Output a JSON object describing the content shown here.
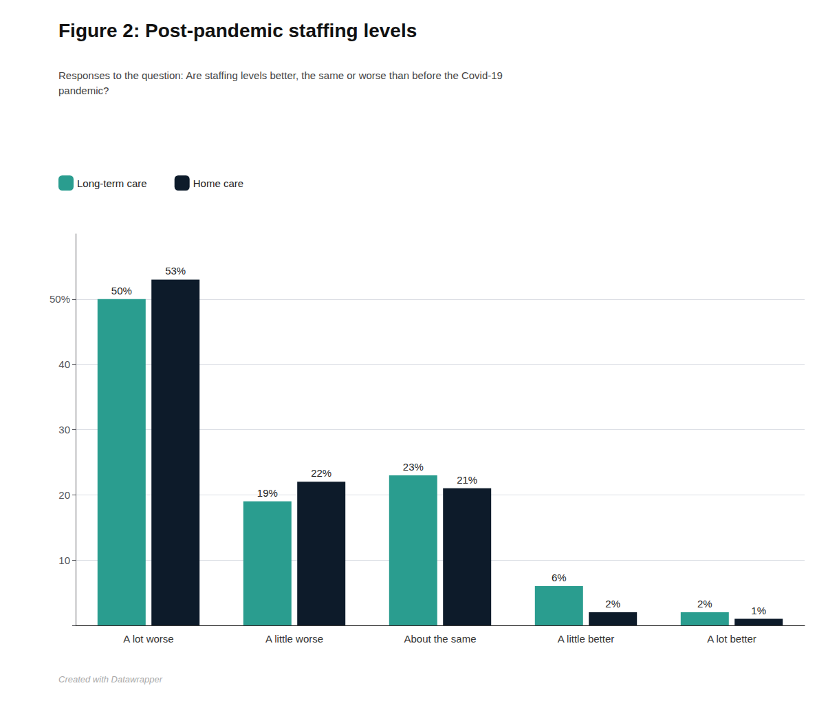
{
  "chart_data": {
    "type": "bar",
    "title": "Figure 2: Post-pandemic staffing levels",
    "subtitle": "Responses to the question: Are staffing levels better, the same or worse than before the Covid-19\npandemic?",
    "footer": "Created with Datawrapper",
    "categories": [
      "A lot worse",
      "A little worse",
      "About the same",
      "A little better",
      "A lot better"
    ],
    "series": [
      {
        "name": "Long-term care",
        "color": "#2a9d8f",
        "values": [
          50,
          19,
          23,
          6,
          2
        ],
        "value_labels": [
          "50%",
          "19%",
          "23%",
          "6%",
          "2%"
        ]
      },
      {
        "name": "Home care",
        "color": "#0d1b2a",
        "values": [
          53,
          22,
          21,
          2,
          1
        ],
        "value_labels": [
          "53%",
          "22%",
          "21%",
          "2%",
          "1%"
        ]
      }
    ],
    "ylim": [
      0,
      60
    ],
    "yticks": [
      {
        "value": 0,
        "label": null
      },
      10,
      20,
      30,
      40,
      {
        "value": 50,
        "label": "50%"
      }
    ],
    "grid": true,
    "legend": "top-left",
    "data_labels": true
  }
}
